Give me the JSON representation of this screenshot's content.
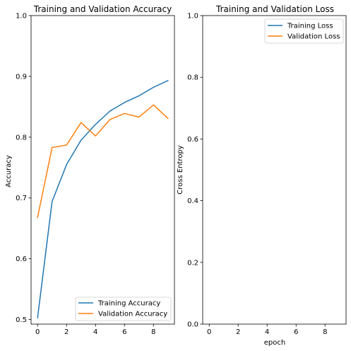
{
  "colors": {
    "series_1": "#1f77b4",
    "series_2": "#ff7f0e"
  },
  "chart_data": [
    {
      "type": "line",
      "title": "Training and Validation Accuracy",
      "xlabel": "",
      "ylabel": "Accuracy",
      "xlim": [
        -0.45,
        9.45
      ],
      "ylim": [
        0.4925,
        1.0
      ],
      "xticks": [
        0,
        2,
        4,
        6,
        8
      ],
      "yticks": [
        0.5,
        0.6,
        0.7,
        0.8,
        0.9,
        1.0
      ],
      "ytick_labels": [
        "0.5",
        "0.6",
        "0.7",
        "0.8",
        "0.9",
        "1.0"
      ],
      "legend_position": "lower-right",
      "grid": false,
      "x": [
        0,
        1,
        2,
        3,
        4,
        5,
        6,
        7,
        8,
        9
      ],
      "series": [
        {
          "name": "Training Accuracy",
          "values": [
            0.503,
            0.694,
            0.755,
            0.795,
            0.821,
            0.843,
            0.857,
            0.868,
            0.882,
            0.893
          ]
        },
        {
          "name": "Validation Accuracy",
          "values": [
            0.668,
            0.783,
            0.787,
            0.824,
            0.802,
            0.829,
            0.839,
            0.833,
            0.853,
            0.831
          ]
        }
      ]
    },
    {
      "type": "line",
      "title": "Training and Validation Loss",
      "xlabel": "epoch",
      "ylabel": "Cross Entropy",
      "xlim": [
        -0.45,
        9.45
      ],
      "ylim": [
        0.0,
        1.0
      ],
      "xticks": [
        0,
        2,
        4,
        6,
        8
      ],
      "yticks": [
        0.0,
        0.2,
        0.4,
        0.6,
        0.8,
        1.0
      ],
      "ytick_labels": [
        "0.0",
        "0.2",
        "0.4",
        "0.6",
        "0.8",
        "1.0"
      ],
      "legend_position": "upper-right",
      "grid": false,
      "x": [],
      "series": [
        {
          "name": "Training Loss",
          "values": []
        },
        {
          "name": "Validation Loss",
          "values": []
        }
      ]
    }
  ]
}
